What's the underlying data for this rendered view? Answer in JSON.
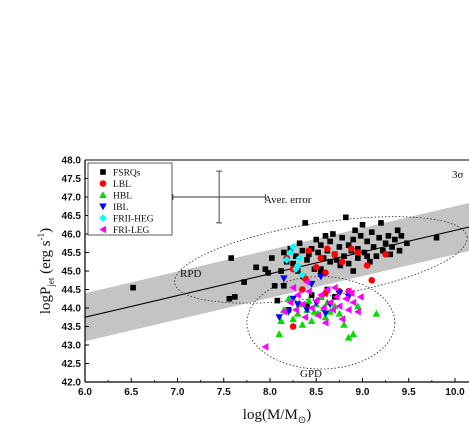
{
  "chart_data": {
    "type": "scatter",
    "xlabel": "log(M/M",
    "xlabel_sub": "⊙",
    "xlabel_end": ")",
    "ylabel_main": "logP",
    "ylabel_sub": "jet",
    "ylabel_unit": "(erg s",
    "ylabel_sup": "-1",
    "ylabel_end": ")",
    "xlim": [
      6.0,
      10.0
    ],
    "ylim": [
      42.0,
      48.0
    ],
    "xticks": [
      "6.0",
      "6.5",
      "7.0",
      "7.5",
      "8.0",
      "8.5",
      "9.0",
      "9.5",
      "10.0"
    ],
    "yticks": [
      "42.0",
      "42.5",
      "43.0",
      "43.5",
      "44.0",
      "44.5",
      "45.0",
      "45.5",
      "46.0",
      "46.5",
      "47.0",
      "47.5",
      "48.0"
    ],
    "annotations": {
      "sigma": "3σ",
      "aver_error": "Aver. error",
      "rpd": "RPD",
      "gpd": "GPD"
    },
    "fit_line": {
      "x": [
        6.0,
        10.0
      ],
      "y": [
        43.75,
        46.1
      ]
    },
    "band": {
      "half_width": 0.65
    },
    "aver_error": {
      "x": 7.45,
      "y": 47.0,
      "xerr": 0.5,
      "yerr": 0.7
    },
    "rpd_ellipse": {
      "cx": 8.55,
      "cy": 45.3,
      "rx": 1.6,
      "ry": 1.0,
      "angle_deg": 9
    },
    "gpd_ellipse": {
      "cx": 8.55,
      "cy": 43.6,
      "rx": 0.8,
      "ry": 1.25
    },
    "legend_position": "top-left",
    "series": [
      {
        "name": "FSRQs",
        "color": "#000000",
        "marker": "square",
        "points": [
          [
            6.52,
            44.55
          ],
          [
            7.58,
            45.35
          ],
          [
            7.62,
            44.3
          ],
          [
            7.56,
            44.25
          ],
          [
            7.72,
            44.7
          ],
          [
            7.85,
            45.1
          ],
          [
            7.95,
            45.05
          ],
          [
            7.98,
            44.95
          ],
          [
            8.02,
            45.35
          ],
          [
            8.05,
            44.6
          ],
          [
            8.08,
            44.2
          ],
          [
            8.12,
            45.0
          ],
          [
            8.15,
            45.5
          ],
          [
            8.18,
            45.25
          ],
          [
            8.22,
            45.6
          ],
          [
            8.25,
            45.2
          ],
          [
            8.28,
            45.4
          ],
          [
            8.3,
            45.0
          ],
          [
            8.32,
            45.75
          ],
          [
            8.35,
            45.55
          ],
          [
            8.36,
            44.85
          ],
          [
            8.38,
            46.3
          ],
          [
            8.4,
            45.3
          ],
          [
            8.42,
            45.45
          ],
          [
            8.45,
            45.6
          ],
          [
            8.48,
            45.05
          ],
          [
            8.5,
            45.85
          ],
          [
            8.52,
            45.5
          ],
          [
            8.55,
            45.7
          ],
          [
            8.55,
            44.95
          ],
          [
            8.58,
            45.35
          ],
          [
            8.6,
            45.95
          ],
          [
            8.62,
            45.55
          ],
          [
            8.65,
            45.25
          ],
          [
            8.65,
            45.8
          ],
          [
            8.68,
            46.0
          ],
          [
            8.7,
            45.45
          ],
          [
            8.72,
            45.3
          ],
          [
            8.75,
            45.65
          ],
          [
            8.76,
            45.15
          ],
          [
            8.78,
            45.9
          ],
          [
            8.8,
            45.4
          ],
          [
            8.82,
            46.45
          ],
          [
            8.85,
            45.7
          ],
          [
            8.85,
            45.2
          ],
          [
            8.88,
            45.55
          ],
          [
            8.9,
            45.85
          ],
          [
            8.92,
            46.1
          ],
          [
            8.95,
            45.35
          ],
          [
            8.95,
            45.6
          ],
          [
            8.98,
            45.95
          ],
          [
            9.0,
            46.25
          ],
          [
            9.02,
            45.5
          ],
          [
            9.05,
            45.8
          ],
          [
            9.08,
            45.25
          ],
          [
            9.1,
            46.05
          ],
          [
            9.12,
            45.65
          ],
          [
            9.15,
            45.4
          ],
          [
            9.18,
            45.9
          ],
          [
            9.2,
            46.3
          ],
          [
            9.22,
            45.55
          ],
          [
            9.25,
            45.75
          ],
          [
            9.28,
            45.95
          ],
          [
            9.3,
            45.45
          ],
          [
            9.32,
            45.65
          ],
          [
            9.35,
            45.85
          ],
          [
            9.38,
            46.1
          ],
          [
            9.4,
            45.55
          ],
          [
            9.42,
            45.95
          ],
          [
            9.48,
            45.75
          ],
          [
            9.8,
            45.9
          ],
          [
            8.2,
            43.95
          ],
          [
            8.55,
            45.05
          ],
          [
            8.45,
            44.35
          ],
          [
            8.62,
            44.5
          ],
          [
            8.4,
            44.05
          ],
          [
            8.7,
            44.3
          ],
          [
            8.15,
            44.6
          ],
          [
            8.9,
            45.0
          ],
          [
            9.05,
            45.4
          ]
        ]
      },
      {
        "name": "LBL",
        "color": "#ff0000",
        "marker": "circle",
        "points": [
          [
            8.18,
            45.35
          ],
          [
            8.25,
            45.05
          ],
          [
            8.35,
            44.5
          ],
          [
            8.42,
            45.55
          ],
          [
            8.5,
            45.1
          ],
          [
            8.55,
            45.35
          ],
          [
            8.6,
            44.95
          ],
          [
            8.62,
            45.6
          ],
          [
            8.7,
            45.45
          ],
          [
            8.75,
            44.45
          ],
          [
            8.78,
            45.25
          ],
          [
            8.85,
            44.45
          ],
          [
            8.88,
            45.6
          ],
          [
            8.95,
            45.5
          ],
          [
            9.05,
            45.15
          ],
          [
            9.1,
            44.75
          ],
          [
            9.25,
            45.45
          ],
          [
            8.25,
            43.5
          ],
          [
            8.6,
            44.4
          ],
          [
            8.38,
            44.8
          ]
        ]
      },
      {
        "name": "HBL",
        "color": "#00dd00",
        "marker": "triangle-up",
        "points": [
          [
            8.1,
            43.3
          ],
          [
            8.15,
            43.95
          ],
          [
            8.2,
            44.25
          ],
          [
            8.25,
            43.7
          ],
          [
            8.3,
            43.85
          ],
          [
            8.32,
            44.1
          ],
          [
            8.35,
            43.55
          ],
          [
            8.4,
            43.95
          ],
          [
            8.42,
            44.2
          ],
          [
            8.45,
            43.65
          ],
          [
            8.48,
            43.9
          ],
          [
            8.5,
            44.1
          ],
          [
            8.52,
            43.85
          ],
          [
            8.55,
            44.3
          ],
          [
            8.58,
            44.0
          ],
          [
            8.6,
            43.75
          ],
          [
            8.62,
            44.15
          ],
          [
            8.65,
            43.9
          ],
          [
            8.7,
            44.05
          ],
          [
            8.75,
            43.85
          ],
          [
            8.8,
            43.55
          ],
          [
            8.85,
            43.2
          ],
          [
            8.9,
            43.3
          ],
          [
            8.95,
            44.05
          ],
          [
            9.15,
            43.85
          ],
          [
            8.12,
            43.65
          ]
        ]
      },
      {
        "name": "IBL",
        "color": "#0000ff",
        "marker": "triangle-down",
        "points": [
          [
            8.1,
            43.75
          ],
          [
            8.15,
            44.8
          ],
          [
            8.25,
            44.25
          ],
          [
            8.3,
            44.1
          ],
          [
            8.4,
            43.95
          ],
          [
            8.5,
            44.15
          ],
          [
            8.6,
            43.85
          ],
          [
            8.65,
            44.1
          ],
          [
            8.2,
            43.9
          ],
          [
            8.75,
            44.4
          ],
          [
            8.85,
            44.3
          ],
          [
            8.45,
            44.65
          ],
          [
            8.55,
            44.85
          ]
        ]
      },
      {
        "name": "FRII-HEG",
        "color": "#00ffff",
        "marker": "diamond",
        "points": [
          [
            8.18,
            45.3
          ],
          [
            8.22,
            45.5
          ],
          [
            8.25,
            45.65
          ],
          [
            8.3,
            45.15
          ],
          [
            8.35,
            44.9
          ],
          [
            8.28,
            45.05
          ],
          [
            8.32,
            45.35
          ]
        ]
      },
      {
        "name": "FRI-LEG",
        "color": "#ff00ff",
        "marker": "triangle-left",
        "points": [
          [
            7.95,
            42.95
          ],
          [
            8.15,
            43.9
          ],
          [
            8.22,
            44.15
          ],
          [
            8.28,
            43.95
          ],
          [
            8.3,
            44.35
          ],
          [
            8.35,
            44.1
          ],
          [
            8.38,
            43.75
          ],
          [
            8.42,
            44.45
          ],
          [
            8.45,
            44.0
          ],
          [
            8.5,
            44.2
          ],
          [
            8.52,
            43.8
          ],
          [
            8.55,
            44.35
          ],
          [
            8.58,
            44.0
          ],
          [
            8.62,
            44.5
          ],
          [
            8.65,
            44.15
          ],
          [
            8.68,
            43.95
          ],
          [
            8.72,
            44.3
          ],
          [
            8.75,
            44.05
          ],
          [
            8.78,
            43.7
          ],
          [
            8.82,
            44.25
          ],
          [
            8.85,
            43.95
          ],
          [
            8.88,
            44.4
          ],
          [
            8.9,
            44.15
          ],
          [
            8.95,
            43.9
          ],
          [
            8.98,
            44.3
          ],
          [
            8.25,
            44.55
          ],
          [
            8.4,
            44.7
          ],
          [
            8.6,
            43.6
          ],
          [
            8.85,
            44.45
          ],
          [
            8.7,
            44.55
          ]
        ]
      }
    ]
  }
}
